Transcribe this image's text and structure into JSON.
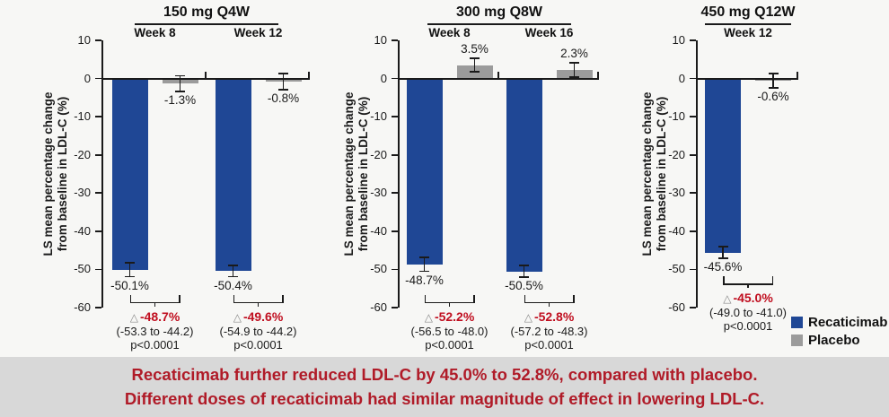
{
  "banner": {
    "line1": "Recaticimab further reduced LDL-C by 45.0% to 52.8%, compared with placebo.",
    "line2": "Different doses of recaticimab had similar magnitude of effect in lowering LDL-C.",
    "text_color": "#B01B28",
    "background": "#D8D8D8"
  },
  "legend": {
    "items": [
      {
        "label": "Recaticimab",
        "color": "#1F4795"
      },
      {
        "label": "Placebo",
        "color": "#9B9B9B"
      }
    ]
  },
  "colors": {
    "recaticimab": "#1F4795",
    "placebo": "#9B9B9B",
    "diff_red": "#C00E1F",
    "axis": "#1A1A1A",
    "triangle": "#8A8A8A"
  },
  "chart_data": {
    "type": "bar",
    "ylabel": [
      "LS mean percentage change",
      "from baseline in LDL-C (%)"
    ],
    "ylim": [
      -60,
      10
    ],
    "yticks": [
      10,
      0,
      -10,
      -20,
      -30,
      -40,
      -50,
      -60
    ],
    "grid": false,
    "legend_position": "bottom-right",
    "series": [
      {
        "name": "Recaticimab",
        "color": "#1F4795"
      },
      {
        "name": "Placebo",
        "color": "#9B9B9B"
      }
    ],
    "diff_triangle": "△",
    "panels": [
      {
        "title": "150 mg Q4W",
        "groups": [
          {
            "week": "Week 8",
            "bars": [
              {
                "series": "Recaticimab",
                "value": -50.1,
                "label": "-50.1%",
                "err": 1.8
              },
              {
                "series": "Placebo",
                "value": -1.3,
                "label": "-1.3%",
                "err": 2.0
              }
            ],
            "diff": {
              "value": "-48.7%",
              "ci": "(-53.3 to -44.2)",
              "p": "p<0.0001"
            }
          },
          {
            "week": "Week 12",
            "bars": [
              {
                "series": "Recaticimab",
                "value": -50.4,
                "label": "-50.4%",
                "err": 1.5
              },
              {
                "series": "Placebo",
                "value": -0.8,
                "label": "-0.8%",
                "err": 2.2
              }
            ],
            "diff": {
              "value": "-49.6%",
              "ci": "(-54.9 to -44.2)",
              "p": "p<0.0001"
            }
          }
        ]
      },
      {
        "title": "300 mg Q8W",
        "groups": [
          {
            "week": "Week 8",
            "bars": [
              {
                "series": "Recaticimab",
                "value": -48.7,
                "label": "-48.7%",
                "err": 1.8
              },
              {
                "series": "Placebo",
                "value": 3.5,
                "label": "3.5%",
                "err": 1.8
              }
            ],
            "diff": {
              "value": "-52.2%",
              "ci": "(-56.5 to -48.0)",
              "p": "p<0.0001"
            }
          },
          {
            "week": "Week 16",
            "bars": [
              {
                "series": "Recaticimab",
                "value": -50.5,
                "label": "-50.5%",
                "err": 1.5
              },
              {
                "series": "Placebo",
                "value": 2.3,
                "label": "2.3%",
                "err": 1.9
              }
            ],
            "diff": {
              "value": "-52.8%",
              "ci": "(-57.2 to -48.3)",
              "p": "p<0.0001"
            }
          }
        ]
      },
      {
        "title": "450 mg Q12W",
        "groups": [
          {
            "week": "Week 12",
            "bars": [
              {
                "series": "Recaticimab",
                "value": -45.6,
                "label": "-45.6%",
                "err": 1.5
              },
              {
                "series": "Placebo",
                "value": -0.6,
                "label": "-0.6%",
                "err": 1.9
              }
            ],
            "diff": {
              "value": "-45.0%",
              "ci": "(-49.0 to -41.0)",
              "p": "p<0.0001"
            }
          }
        ]
      }
    ]
  }
}
